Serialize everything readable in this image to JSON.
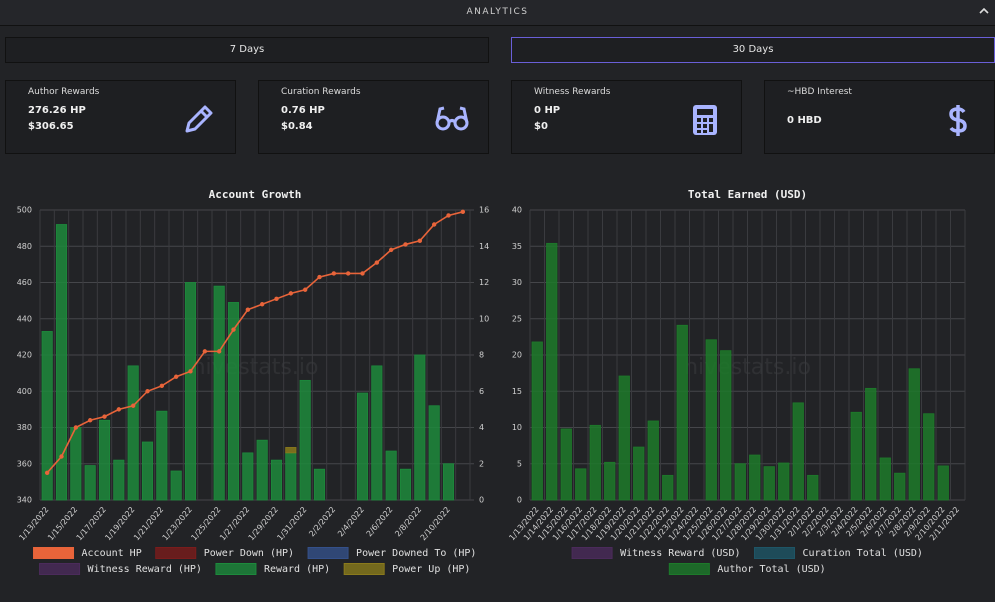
{
  "header": {
    "title": "ANALYTICS"
  },
  "buttons": [
    "7 Days",
    "30 Days"
  ],
  "cards": [
    {
      "title": "Author Rewards",
      "lines": [
        "276.26 HP",
        "$306.65"
      ]
    },
    {
      "title": "Curation Rewards",
      "lines": [
        "0.76 HP",
        "$0.84"
      ]
    },
    {
      "title": "Witness Rewards",
      "lines": [
        "0 HP",
        "$0"
      ]
    },
    {
      "title": "~HBD Interest",
      "lines": [
        "0 HBD"
      ]
    }
  ],
  "watermark": "hivestats.io",
  "chart_data": [
    {
      "type": "bar",
      "title": "Account Growth",
      "categories": [
        "1/13/2022",
        null,
        "1/15/2022",
        null,
        "1/17/2022",
        null,
        "1/19/2022",
        null,
        "1/21/2022",
        null,
        "1/23/2022",
        null,
        "1/25/2022",
        null,
        "1/27/2022",
        null,
        "1/29/2022",
        null,
        "1/31/2022",
        null,
        "2/2/2022",
        null,
        "2/4/2022",
        null,
        "2/6/2022",
        null,
        "2/8/2022",
        null,
        "2/10/2022",
        null
      ],
      "ylim": [
        340,
        500
      ],
      "yticks": [
        340,
        360,
        380,
        400,
        420,
        440,
        460,
        480,
        500
      ],
      "y2lim": [
        0,
        16
      ],
      "y2ticks": [
        0,
        2,
        4,
        6,
        8,
        10,
        12,
        14,
        16
      ],
      "grid": true,
      "series": [
        {
          "name": "Account HP",
          "type": "line",
          "color": "#e8643a",
          "values": [
            355,
            364,
            380,
            384,
            386,
            390,
            392,
            400,
            403,
            408,
            411,
            422,
            422,
            434,
            445,
            448,
            451,
            454,
            456,
            463,
            465,
            465,
            465,
            471,
            478,
            481,
            483,
            492,
            497,
            499
          ]
        },
        {
          "name": "Power Down (HP)",
          "color": "#7a1c1c"
        },
        {
          "name": "Power Downed To (HP)",
          "color": "#34508a"
        },
        {
          "name": "Witness Reward (HP)",
          "color": "#4b2b5b"
        },
        {
          "name": "Reward (HP)",
          "color": "#1d8a3c",
          "axis": "y2",
          "values": [
            9.3,
            15.2,
            4.0,
            1.9,
            4.4,
            2.2,
            7.4,
            3.2,
            4.9,
            1.6,
            12.0,
            0,
            11.8,
            10.9,
            2.6,
            3.3,
            2.2,
            2.6,
            6.6,
            1.7,
            0,
            0,
            5.9,
            7.4,
            2.7,
            1.7,
            8.0,
            5.2,
            2.0,
            0
          ]
        },
        {
          "name": "Power Up (HP)",
          "color": "#8a7a1c",
          "axis": "y2",
          "values": [
            0,
            0,
            0,
            0,
            0,
            0,
            0,
            0,
            0,
            0,
            0,
            0,
            0,
            0,
            0,
            0,
            0,
            0.3,
            0,
            0,
            0,
            0,
            0,
            0,
            0,
            0,
            0,
            0,
            0,
            0
          ]
        }
      ]
    },
    {
      "type": "bar",
      "title": "Total Earned (USD)",
      "categories": [
        "1/13/2022",
        "1/14/2022",
        "1/15/2022",
        "1/16/2022",
        "1/17/2022",
        "1/18/2022",
        "1/19/2022",
        "1/20/2022",
        "1/21/2022",
        "1/22/2022",
        "1/23/2022",
        "1/24/2022",
        "1/25/2022",
        "1/26/2022",
        "1/27/2022",
        "1/28/2022",
        "1/29/2022",
        "1/30/2022",
        "1/31/2022",
        "2/1/2022",
        "2/2/2022",
        "2/3/2022",
        "2/4/2022",
        "2/5/2022",
        "2/6/2022",
        "2/7/2022",
        "2/8/2022",
        "2/9/2022",
        "2/10/2022",
        "2/11/2022"
      ],
      "ylim": [
        0,
        40
      ],
      "yticks": [
        0,
        5,
        10,
        15,
        20,
        25,
        30,
        35,
        40
      ],
      "grid": true,
      "series": [
        {
          "name": "Witness Reward (USD)",
          "color": "#4b2b5b"
        },
        {
          "name": "Curation Total (USD)",
          "color": "#1e5566"
        },
        {
          "name": "Author Total (USD)",
          "color": "#1d7a2a",
          "values": [
            21.8,
            35.4,
            9.8,
            4.3,
            10.3,
            5.2,
            17.1,
            7.3,
            10.9,
            3.4,
            24.1,
            0,
            22.1,
            20.6,
            5.0,
            6.2,
            4.6,
            5.1,
            13.4,
            3.4,
            0,
            0,
            12.1,
            15.4,
            5.8,
            3.7,
            18.1,
            11.9,
            4.7,
            0
          ]
        }
      ]
    }
  ]
}
